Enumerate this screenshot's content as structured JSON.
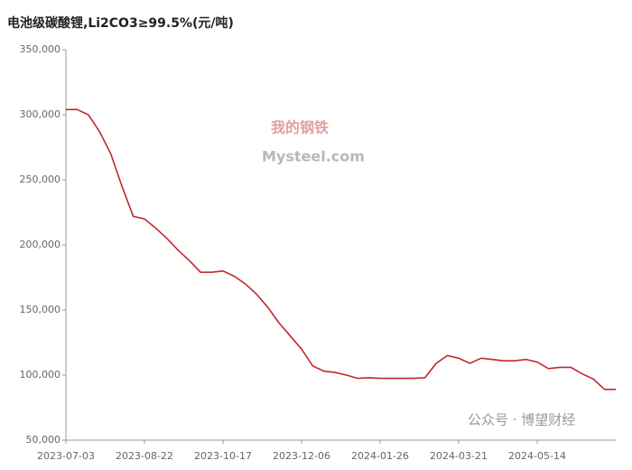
{
  "chart_data": {
    "type": "line",
    "title": "电池级碳酸锂,Li2CO3≥99.5%(元/吨)",
    "watermark": "Mysteel.com",
    "watermark_cn": "我的钢铁",
    "source_note": "公众号 · 博望财经",
    "categories": [
      "2023-07-03",
      null,
      null,
      null,
      null,
      null,
      null,
      "2023-08-22",
      null,
      null,
      null,
      null,
      null,
      null,
      "2023-10-17",
      null,
      null,
      null,
      null,
      null,
      null,
      "2023-12-06",
      null,
      null,
      null,
      null,
      null,
      null,
      "2024-01-26",
      null,
      null,
      null,
      null,
      null,
      null,
      "2024-03-21",
      null,
      null,
      null,
      null,
      null,
      null,
      "2024-05-14",
      null,
      null,
      null,
      null,
      null,
      null,
      null
    ],
    "series": [
      {
        "name": "电池级碳酸锂",
        "color": "#c0282d",
        "values": [
          304000,
          304000,
          300000,
          287000,
          270000,
          245000,
          222000,
          220000,
          213000,
          205000,
          196000,
          188000,
          179000,
          179000,
          180000,
          176000,
          170000,
          162000,
          152000,
          140000,
          130000,
          120000,
          107000,
          103000,
          102000,
          100000,
          97500,
          98000,
          97500,
          97500,
          97500,
          97500,
          98000,
          109000,
          115000,
          113000,
          109000,
          113000,
          112000,
          111000,
          111000,
          112000,
          110000,
          105000,
          106000,
          106000,
          101000,
          97000,
          89000,
          89000
        ]
      }
    ],
    "ylim": [
      50000,
      350000
    ],
    "yticks": [
      {
        "value": 50000,
        "label": "50,000"
      },
      {
        "value": 100000,
        "label": "100,000"
      },
      {
        "value": 150000,
        "label": "150,000"
      },
      {
        "value": 200000,
        "label": "200,000"
      },
      {
        "value": 250000,
        "label": "250,000"
      },
      {
        "value": 300000,
        "label": "300,000"
      },
      {
        "value": 350000,
        "label": "350,000"
      }
    ],
    "grid": false
  }
}
